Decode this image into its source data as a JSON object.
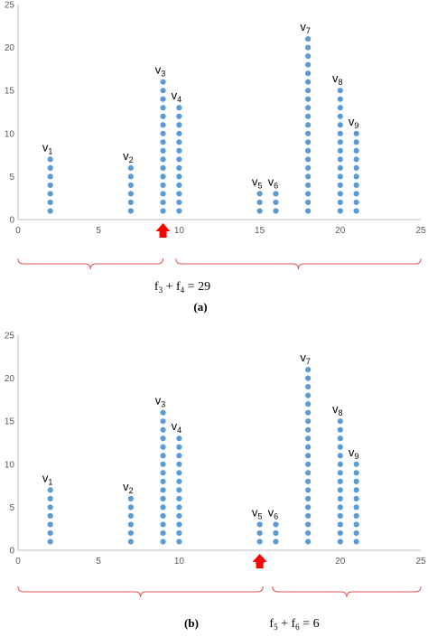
{
  "chart_data": [
    {
      "type": "scatter",
      "panel_label": "(a)",
      "marker_color": "#5B9BD5",
      "xlim": [
        0,
        25
      ],
      "ylim": [
        0,
        25
      ],
      "x_ticks": [
        0,
        5,
        10,
        15,
        20,
        25
      ],
      "y_ticks": [
        0,
        5,
        10,
        15,
        20,
        25
      ],
      "columns": [
        {
          "name": "v",
          "sub": "1",
          "x": 2,
          "count": 7
        },
        {
          "name": "v",
          "sub": "2",
          "x": 7,
          "count": 6
        },
        {
          "name": "v",
          "sub": "3",
          "x": 9,
          "count": 16
        },
        {
          "name": "v",
          "sub": "4",
          "x": 10,
          "count": 13
        },
        {
          "name": "v",
          "sub": "5",
          "x": 15,
          "count": 3
        },
        {
          "name": "v",
          "sub": "6",
          "x": 16,
          "count": 3
        },
        {
          "name": "v",
          "sub": "7",
          "x": 18,
          "count": 21
        },
        {
          "name": "v",
          "sub": "8",
          "x": 20,
          "count": 15
        },
        {
          "name": "v",
          "sub": "9",
          "x": 21,
          "count": 10
        }
      ],
      "split_arrow_x": 9,
      "arrow_color": "#FF0000",
      "brace_color": "#E05050",
      "braces": [
        [
          0,
          9
        ],
        [
          9.8,
          25
        ]
      ],
      "brace_text": {
        "f1": "f",
        "s1": "3",
        "plus": " + ",
        "f2": "f",
        "s2": "4",
        "rest": " = 29"
      }
    },
    {
      "type": "scatter",
      "panel_label": "(b)",
      "marker_color": "#5B9BD5",
      "xlim": [
        0,
        25
      ],
      "ylim": [
        0,
        25
      ],
      "x_ticks": [
        0,
        5,
        10,
        15,
        20,
        25
      ],
      "y_ticks": [
        0,
        5,
        10,
        15,
        20,
        25
      ],
      "columns": [
        {
          "name": "v",
          "sub": "1",
          "x": 2,
          "count": 7
        },
        {
          "name": "v",
          "sub": "2",
          "x": 7,
          "count": 6
        },
        {
          "name": "v",
          "sub": "3",
          "x": 9,
          "count": 16
        },
        {
          "name": "v",
          "sub": "4",
          "x": 10,
          "count": 13
        },
        {
          "name": "v",
          "sub": "5",
          "x": 15,
          "count": 3
        },
        {
          "name": "v",
          "sub": "6",
          "x": 16,
          "count": 3
        },
        {
          "name": "v",
          "sub": "7",
          "x": 18,
          "count": 21
        },
        {
          "name": "v",
          "sub": "8",
          "x": 20,
          "count": 15
        },
        {
          "name": "v",
          "sub": "9",
          "x": 21,
          "count": 10
        }
      ],
      "split_arrow_x": 15,
      "arrow_color": "#FF0000",
      "brace_color": "#E05050",
      "braces": [
        [
          0,
          15.2
        ],
        [
          15.8,
          25
        ]
      ],
      "brace_text": {
        "f1": "f",
        "s1": "5",
        "plus": " + ",
        "f2": "f",
        "s2": "6",
        "rest": " = 6"
      }
    }
  ]
}
